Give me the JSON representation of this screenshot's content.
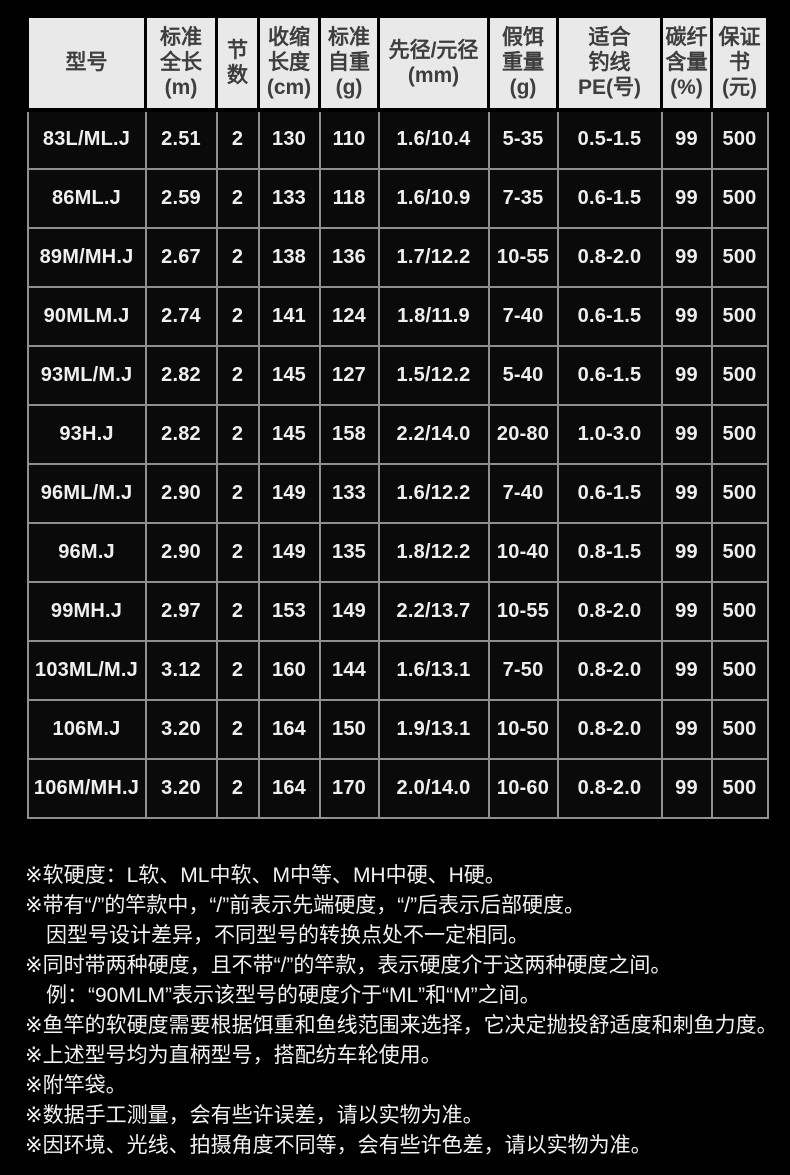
{
  "table": {
    "header": [
      {
        "id": "model",
        "lines": [
          "型号"
        ]
      },
      {
        "id": "std-length",
        "lines": [
          "标准",
          "全长",
          "(m)"
        ]
      },
      {
        "id": "sections",
        "lines": [
          "节",
          "数"
        ]
      },
      {
        "id": "closed-length",
        "lines": [
          "收缩",
          "长度",
          "(cm)"
        ]
      },
      {
        "id": "std-weight",
        "lines": [
          "标准",
          "自重",
          "(g)"
        ]
      },
      {
        "id": "tip-butt-diameter",
        "lines": [
          "先径/元径",
          "(mm)"
        ]
      },
      {
        "id": "lure-weight",
        "lines": [
          "假饵",
          "重量",
          "(g)"
        ]
      },
      {
        "id": "line-rating",
        "lines": [
          "适合",
          "钓线",
          "PE(号)"
        ]
      },
      {
        "id": "carbon-content",
        "lines": [
          "碳纤",
          "含量",
          "(%)"
        ]
      },
      {
        "id": "warranty",
        "lines": [
          "保证",
          "书",
          "(元)"
        ]
      }
    ],
    "rows": [
      [
        "83L/ML.J",
        "2.51",
        "2",
        "130",
        "110",
        "1.6/10.4",
        "5-35",
        "0.5-1.5",
        "99",
        "500"
      ],
      [
        "86ML.J",
        "2.59",
        "2",
        "133",
        "118",
        "1.6/10.9",
        "7-35",
        "0.6-1.5",
        "99",
        "500"
      ],
      [
        "89M/MH.J",
        "2.67",
        "2",
        "138",
        "136",
        "1.7/12.2",
        "10-55",
        "0.8-2.0",
        "99",
        "500"
      ],
      [
        "90MLM.J",
        "2.74",
        "2",
        "141",
        "124",
        "1.8/11.9",
        "7-40",
        "0.6-1.5",
        "99",
        "500"
      ],
      [
        "93ML/M.J",
        "2.82",
        "2",
        "145",
        "127",
        "1.5/12.2",
        "5-40",
        "0.6-1.5",
        "99",
        "500"
      ],
      [
        "93H.J",
        "2.82",
        "2",
        "145",
        "158",
        "2.2/14.0",
        "20-80",
        "1.0-3.0",
        "99",
        "500"
      ],
      [
        "96ML/M.J",
        "2.90",
        "2",
        "149",
        "133",
        "1.6/12.2",
        "7-40",
        "0.6-1.5",
        "99",
        "500"
      ],
      [
        "96M.J",
        "2.90",
        "2",
        "149",
        "135",
        "1.8/12.2",
        "10-40",
        "0.8-1.5",
        "99",
        "500"
      ],
      [
        "99MH.J",
        "2.97",
        "2",
        "153",
        "149",
        "2.2/13.7",
        "10-55",
        "0.8-2.0",
        "99",
        "500"
      ],
      [
        "103ML/M.J",
        "3.12",
        "2",
        "160",
        "144",
        "1.6/13.1",
        "7-50",
        "0.8-2.0",
        "99",
        "500"
      ],
      [
        "106M.J",
        "3.20",
        "2",
        "164",
        "150",
        "1.9/13.1",
        "10-50",
        "0.8-2.0",
        "99",
        "500"
      ],
      [
        "106M/MH.J",
        "3.20",
        "2",
        "164",
        "170",
        "2.0/14.0",
        "10-60",
        "0.8-2.0",
        "99",
        "500"
      ]
    ]
  },
  "notes": [
    {
      "text": "※软硬度：L软、ML中软、M中等、MH中硬、H硬。",
      "indent": false
    },
    {
      "text": "※带有“/”的竿款中，“/”前表示先端硬度，“/”后表示后部硬度。",
      "indent": false
    },
    {
      "text": "因型号设计差异，不同型号的转换点处不一定相同。",
      "indent": true
    },
    {
      "text": "※同时带两种硬度，且不带“/”的竿款，表示硬度介于这两种硬度之间。",
      "indent": false
    },
    {
      "text": "例：“90MLM”表示该型号的硬度介于“ML”和“M”之间。",
      "indent": true
    },
    {
      "text": "※鱼竿的软硬度需要根据饵重和鱼线范围来选择，它决定抛投舒适度和刺鱼力度。",
      "indent": false
    },
    {
      "text": "※上述型号均为直柄型号，搭配纺车轮使用。",
      "indent": false
    },
    {
      "text": "※附竿袋。",
      "indent": false
    },
    {
      "text": "※数据手工测量，会有些许误差，请以实物为准。",
      "indent": false
    },
    {
      "text": "※因环境、光线、拍摄角度不同等，会有些许色差，请以实物为准。",
      "indent": false
    }
  ],
  "colors": {
    "page_bg": "#000000",
    "header_bg": "#e9e9e9",
    "header_text": "#3e3e3e",
    "cell_bg": "#0a0a0a",
    "cell_text": "#efefef",
    "grid_line": "#8f8f8f",
    "note_text": "#f2f2f2"
  }
}
